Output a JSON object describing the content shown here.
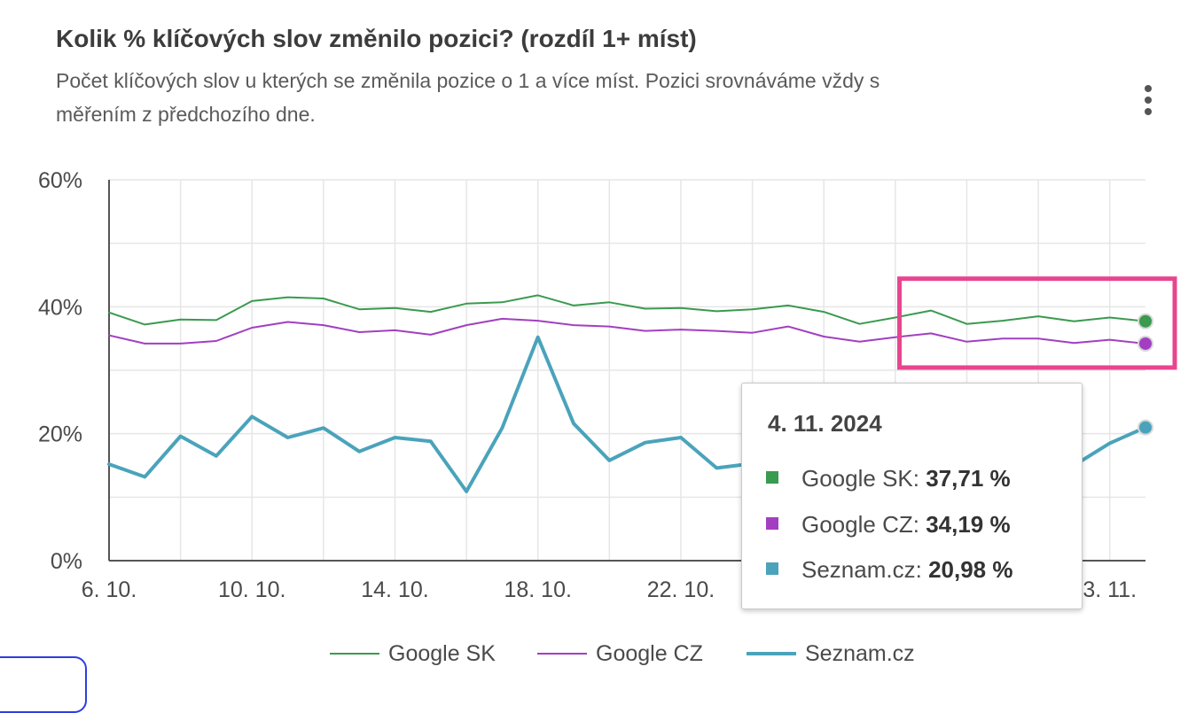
{
  "title": "Kolik % klíčových slov změnilo pozici? (rozdíl 1+ míst)",
  "subtitle": "Počet klíčových slov u kterých se změnila pozice o 1 a více míst. Pozici srovnáváme vždy s měřením z předchozího dne.",
  "menu_icon": "more-vert-icon",
  "colors": {
    "google_sk": "#3a9a4f",
    "google_cz": "#a23fc1",
    "seznam": "#4aa3bb",
    "highlight": "#e8458f",
    "grid": "#e6e6e6",
    "axis": "#555555"
  },
  "tooltip": {
    "date": "4. 11. 2024",
    "rows": [
      {
        "label": "Google SK:",
        "value": "37,71 %"
      },
      {
        "label": "Google CZ:",
        "value": "34,19 %"
      },
      {
        "label": "Seznam.cz:",
        "value": "20,98 %"
      }
    ]
  },
  "legend": [
    "Google SK",
    "Google CZ",
    "Seznam.cz"
  ],
  "chart_data": {
    "type": "line",
    "title": "Kolik % klíčových slov změnilo pozici? (rozdíl 1+ míst)",
    "subtitle": "Počet klíčových slov u kterých se změnila pozice o 1 a více míst. Pozici srovnáváme vždy s měřením z předchozího dne.",
    "x": [
      "6. 10.",
      "7. 10.",
      "8. 10.",
      "9. 10.",
      "10. 10.",
      "11. 10.",
      "12. 10.",
      "13. 10.",
      "14. 10.",
      "15. 10.",
      "16. 10.",
      "17. 10.",
      "18. 10.",
      "19. 10.",
      "20. 10.",
      "21. 10.",
      "22. 10.",
      "23. 10.",
      "24. 10.",
      "25. 10.",
      "26. 10.",
      "27. 10.",
      "28. 10.",
      "29. 10.",
      "30. 10.",
      "31. 10.",
      "1. 11.",
      "2. 11.",
      "3. 11.",
      "4. 11."
    ],
    "x_tick_labels": [
      "6. 10.",
      "10. 10.",
      "14. 10.",
      "18. 10.",
      "22. 10.",
      "3. 11."
    ],
    "y_tick_labels": [
      "0%",
      "20%",
      "40%",
      "60%"
    ],
    "ylim": [
      0,
      60
    ],
    "xlabel": "",
    "ylabel": "",
    "grid": true,
    "legend_position": "bottom",
    "series": [
      {
        "name": "Google SK",
        "values": [
          39.1,
          37.2,
          38.0,
          37.9,
          40.9,
          41.5,
          41.3,
          39.6,
          39.8,
          39.2,
          40.5,
          40.7,
          41.8,
          40.2,
          40.7,
          39.7,
          39.8,
          39.3,
          39.6,
          40.2,
          39.2,
          37.3,
          38.3,
          39.4,
          37.3,
          37.8,
          38.5,
          37.7,
          38.3,
          37.71
        ]
      },
      {
        "name": "Google CZ",
        "values": [
          35.5,
          34.2,
          34.2,
          34.6,
          36.7,
          37.6,
          37.1,
          36.0,
          36.3,
          35.6,
          37.1,
          38.1,
          37.8,
          37.1,
          36.9,
          36.2,
          36.4,
          36.2,
          35.9,
          36.9,
          35.3,
          34.5,
          35.2,
          35.8,
          34.5,
          35.0,
          35.0,
          34.3,
          34.8,
          34.19
        ]
      },
      {
        "name": "Seznam.cz",
        "values": [
          15.2,
          13.2,
          19.6,
          16.5,
          22.7,
          19.4,
          20.9,
          17.2,
          19.4,
          18.8,
          10.9,
          20.9,
          35.2,
          21.6,
          15.8,
          18.6,
          19.4,
          14.6,
          15.3,
          15.5,
          15.2,
          14.5,
          13.5,
          15.0,
          13.2,
          14.0,
          14.8,
          15.0,
          18.5,
          20.98
        ]
      }
    ],
    "highlighted_points_index": 29
  }
}
